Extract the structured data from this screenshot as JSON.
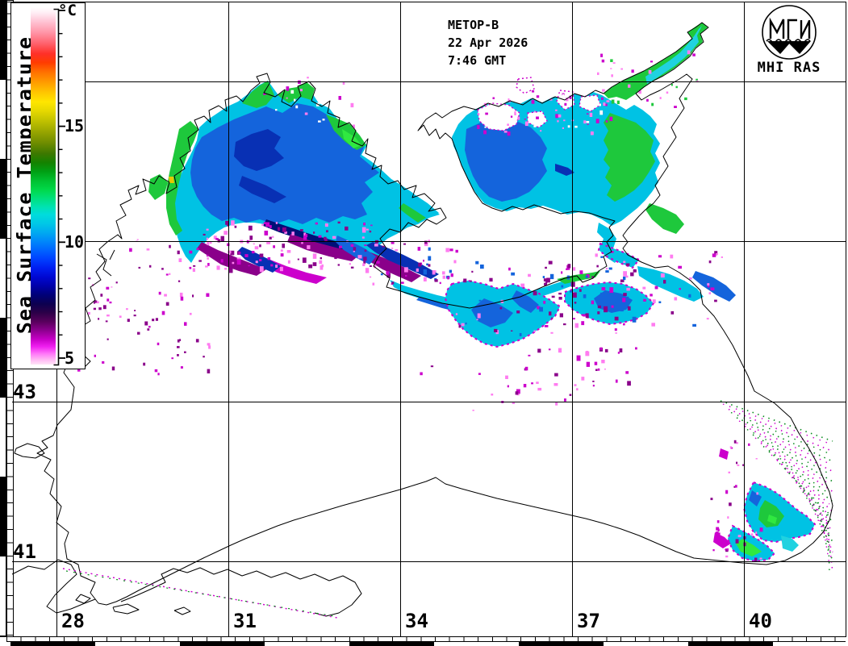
{
  "header": {
    "satellite": "METOP-B",
    "date": "22 Apr 2026",
    "time": "7:46 GMT"
  },
  "logo": {
    "label": "MHI RAS"
  },
  "colorbar": {
    "title": "Sea Surface Temperature",
    "unit": "°C",
    "tick_labels": [
      "15",
      "10",
      "5"
    ],
    "gradient_stops": [
      [
        "0%",
        "#ffffff"
      ],
      [
        "1.5%",
        "#ffeef5"
      ],
      [
        "4%",
        "#ffc4d4"
      ],
      [
        "7%",
        "#ff96a8"
      ],
      [
        "10%",
        "#ff6470"
      ],
      [
        "13%",
        "#ff3028"
      ],
      [
        "15.5%",
        "#ff3c00"
      ],
      [
        "18%",
        "#ff6e00"
      ],
      [
        "21%",
        "#ff9c00"
      ],
      [
        "24%",
        "#ffc800"
      ],
      [
        "26.5%",
        "#ffe600"
      ],
      [
        "29%",
        "#e6d800"
      ],
      [
        "32%",
        "#bec000"
      ],
      [
        "35%",
        "#96a400"
      ],
      [
        "38%",
        "#6e8c00"
      ],
      [
        "41%",
        "#3c7800"
      ],
      [
        "43.5%",
        "#148200"
      ],
      [
        "46%",
        "#00a014"
      ],
      [
        "48.5%",
        "#00c030"
      ],
      [
        "51%",
        "#00d848"
      ],
      [
        "53.5%",
        "#00e07c"
      ],
      [
        "56%",
        "#00e2b4"
      ],
      [
        "58%",
        "#00dcdc"
      ],
      [
        "60.5%",
        "#00c8e6"
      ],
      [
        "63%",
        "#00aaf0"
      ],
      [
        "65.5%",
        "#0088fa"
      ],
      [
        "68%",
        "#0064ff"
      ],
      [
        "70.5%",
        "#0040ff"
      ],
      [
        "73%",
        "#001ef0"
      ],
      [
        "75.5%",
        "#0008d2"
      ],
      [
        "78%",
        "#0000aa"
      ],
      [
        "80.5%",
        "#000078"
      ],
      [
        "83%",
        "#0c0050"
      ],
      [
        "85.5%",
        "#2c0048"
      ],
      [
        "88%",
        "#58005c"
      ],
      [
        "90.5%",
        "#8e0090"
      ],
      [
        "93%",
        "#c800c8"
      ],
      [
        "95%",
        "#f020f0"
      ],
      [
        "97%",
        "#ff78f8"
      ],
      [
        "98.5%",
        "#ffb4f4"
      ],
      [
        "100%",
        "#ffe4f6"
      ]
    ]
  },
  "axes": {
    "lat": [
      "43",
      "41"
    ],
    "lon": [
      "28",
      "31",
      "34",
      "37",
      "40"
    ]
  },
  "map_colors": {
    "coast": "#000000",
    "grid": "#000000",
    "sea_cyan": "#00c2e4",
    "sea_cyan2": "#20d2e0",
    "sea_blue": "#1464dc",
    "sea_deep": "#0830b4",
    "navy": "#001078",
    "green": "#1ec83c",
    "bright_green": "#30e840",
    "dark_green": "#0a8a1e",
    "magenta": "#cc00cc",
    "dark_magenta": "#8a008a",
    "pink": "#ff7cf0",
    "white": "#ffffff",
    "yellow": "#e8c800"
  }
}
